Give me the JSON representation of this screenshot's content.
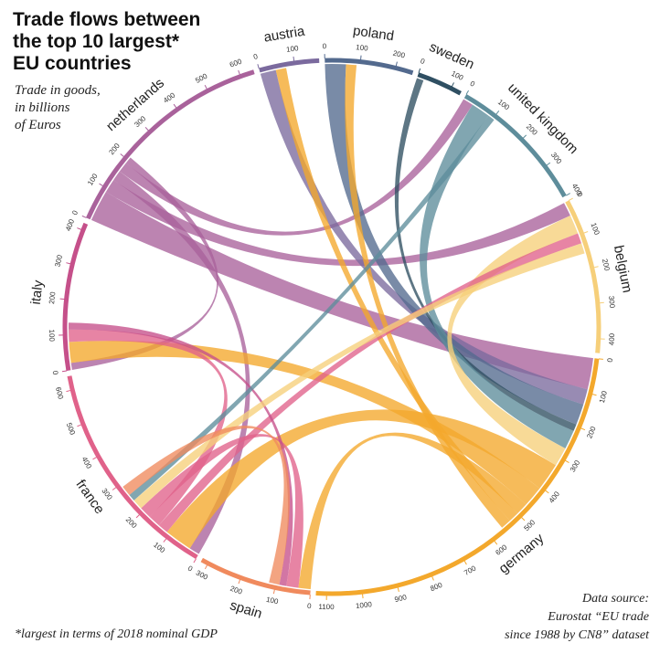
{
  "title_lines": [
    "Trade flows between",
    "the top 10 largest*",
    "EU countries"
  ],
  "subtitle_lines": [
    "Trade in goods,",
    "in billions",
    "of Euros"
  ],
  "footnote": "*largest in terms of 2018 nominal GDP",
  "source_lines": [
    "Data source:",
    "Eurostat “EU trade",
    "since 1988 by CN8” dataset"
  ],
  "colors": {
    "netherlands": "#a9629b",
    "austria": "#7b6a9e",
    "poland": "#536a8e",
    "sweden": "#2f4f62",
    "united_kingdom": "#5e8d9b",
    "belgium": "#f6cf7a",
    "germany": "#f3a82c",
    "spain": "#f08a5d",
    "france": "#e0628a",
    "italy": "#c5508a"
  },
  "chart_data": {
    "type": "chord",
    "unit": "billions of Euros",
    "countries": [
      {
        "name": "netherlands",
        "color": "#a9629b",
        "ticks": [
          "0",
          "100",
          "200",
          "300",
          "400",
          "500",
          "600"
        ]
      },
      {
        "name": "austria",
        "color": "#7b6a9e",
        "ticks": [
          "0",
          "100"
        ]
      },
      {
        "name": "poland",
        "color": "#536a8e",
        "ticks": [
          "0",
          "100",
          "200"
        ]
      },
      {
        "name": "sweden",
        "color": "#2f4f62",
        "ticks": [
          "0",
          "100"
        ]
      },
      {
        "name": "united kingdom",
        "color": "#5e8d9b",
        "ticks": [
          "0",
          "100",
          "200",
          "300",
          "400"
        ]
      },
      {
        "name": "belgium",
        "color": "#f6cf7a",
        "ticks": [
          "0",
          "100",
          "200",
          "300",
          "400"
        ]
      },
      {
        "name": "germany",
        "color": "#f3a82c",
        "ticks": [
          "0",
          "100",
          "200",
          "300",
          "400",
          "500",
          "600",
          "700",
          "800",
          "900",
          "1000",
          "1100"
        ]
      },
      {
        "name": "spain",
        "color": "#f08a5d",
        "ticks": [
          "0",
          "100",
          "200",
          "300"
        ]
      },
      {
        "name": "france",
        "color": "#e0628a",
        "ticks": [
          "0",
          "100",
          "200",
          "300",
          "400",
          "500",
          "600"
        ]
      },
      {
        "name": "italy",
        "color": "#c5508a",
        "ticks": [
          "0",
          "100",
          "200",
          "300",
          "400"
        ]
      }
    ],
    "arc_totals": [
      {
        "country": "netherlands",
        "value": 640
      },
      {
        "country": "austria",
        "value": 170
      },
      {
        "country": "poland",
        "value": 250
      },
      {
        "country": "sweden",
        "value": 130
      },
      {
        "country": "united kingdom",
        "value": 400
      },
      {
        "country": "belgium",
        "value": 440
      },
      {
        "country": "germany",
        "value": 1130
      },
      {
        "country": "spain",
        "value": 320
      },
      {
        "country": "france",
        "value": 640
      },
      {
        "country": "italy",
        "value": 420
      }
    ],
    "flows": [
      {
        "source": "netherlands",
        "target": "germany",
        "value": 180
      },
      {
        "source": "netherlands",
        "target": "belgium",
        "value": 80
      },
      {
        "source": "netherlands",
        "target": "france",
        "value": 60
      },
      {
        "source": "netherlands",
        "target": "united kingdom",
        "value": 60
      },
      {
        "source": "netherlands",
        "target": "italy",
        "value": 40
      },
      {
        "source": "austria",
        "target": "germany",
        "value": 90
      },
      {
        "source": "poland",
        "target": "germany",
        "value": 120
      },
      {
        "source": "sweden",
        "target": "germany",
        "value": 40
      },
      {
        "source": "united kingdom",
        "target": "germany",
        "value": 110
      },
      {
        "source": "belgium",
        "target": "germany",
        "value": 110
      },
      {
        "source": "germany",
        "target": "france",
        "value": 160
      },
      {
        "source": "germany",
        "target": "italy",
        "value": 120
      },
      {
        "source": "germany",
        "target": "spain",
        "value": 70
      },
      {
        "source": "germany",
        "target": "austria",
        "value": 60
      },
      {
        "source": "germany",
        "target": "poland",
        "value": 60
      },
      {
        "source": "france",
        "target": "belgium",
        "value": 60
      },
      {
        "source": "france",
        "target": "italy",
        "value": 70
      },
      {
        "source": "france",
        "target": "spain",
        "value": 70
      },
      {
        "source": "italy",
        "target": "spain",
        "value": 40
      },
      {
        "source": "belgium",
        "target": "france",
        "value": 60
      },
      {
        "source": "united kingdom",
        "target": "france",
        "value": 40
      },
      {
        "source": "spain",
        "target": "france",
        "value": 60
      }
    ]
  }
}
